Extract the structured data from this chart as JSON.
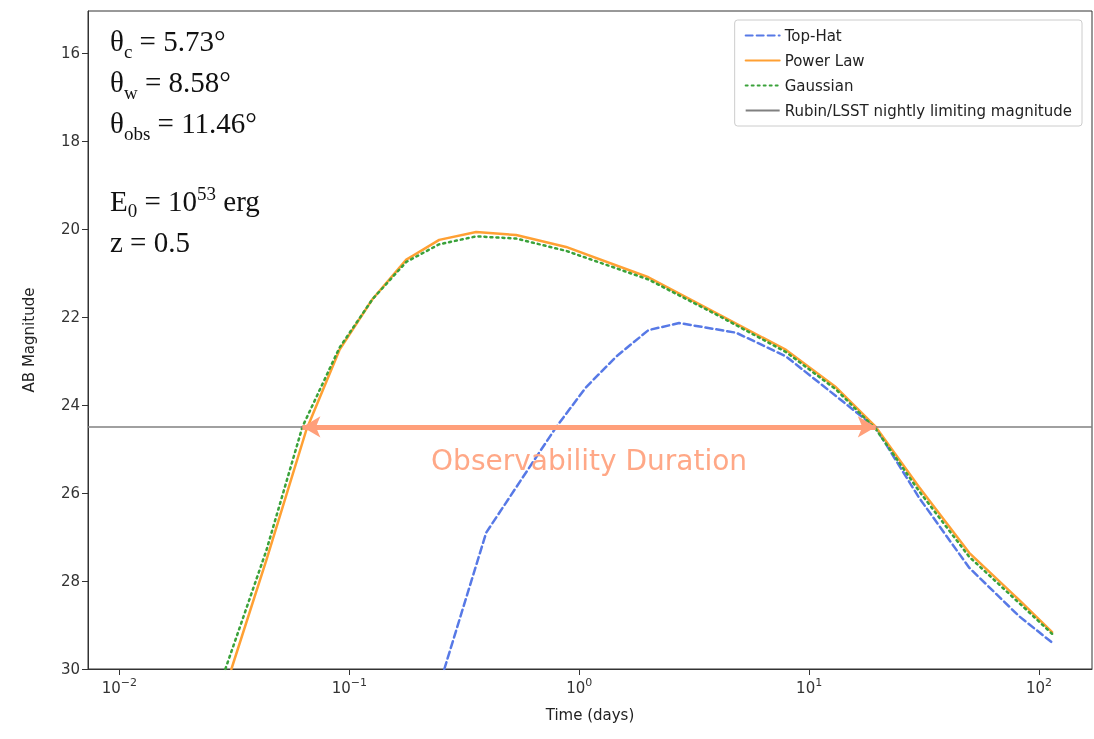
{
  "chart_data": {
    "type": "line",
    "xlabel": "Time (days)",
    "ylabel": "AB Magnitude",
    "log": "x",
    "marker": "none",
    "grid": false,
    "legend": "top right",
    "xlim": [
      0.0073,
      170
    ],
    "xticks": [
      {
        "value": 0.01,
        "label": "10$^{−2}$"
      },
      {
        "value": 0.1,
        "label": "10$^{−1}$"
      },
      {
        "value": 1,
        "label": "10$^{0}$"
      },
      {
        "value": 10,
        "label": "10$^{1}$"
      },
      {
        "value": 100,
        "label": "10$^{2}$"
      }
    ],
    "ylim": [
      30,
      15.05
    ],
    "yticks": [
      16,
      18,
      20,
      22,
      24,
      26,
      28,
      30
    ],
    "series": [
      {
        "name": "Top-Hat",
        "color": "#5779e6",
        "line_style": "dashed",
        "x": [
          0.259,
          0.394,
          0.625,
          0.795,
          1.07,
          1.45,
          2.0,
          2.72,
          4.82,
          7.94,
          13.1,
          19.5,
          30,
          49.7,
          81.9,
          114
        ],
        "values": [
          30,
          26.9,
          25.32,
          24.5,
          23.6,
          22.9,
          22.3,
          22.14,
          22.36,
          22.9,
          23.8,
          24.52,
          26.1,
          27.7,
          28.8,
          29.4
        ]
      },
      {
        "name": "Power Law",
        "color": "#ffa033",
        "line_style": "solid",
        "x": [
          0.0307,
          0.0436,
          0.065,
          0.0906,
          0.126,
          0.177,
          0.246,
          0.356,
          0.532,
          0.877,
          2.0,
          4.06,
          7.94,
          13.1,
          19.5,
          30,
          49.7,
          81.9,
          114
        ],
        "values": [
          30,
          27.52,
          24.57,
          22.75,
          21.6,
          20.7,
          20.25,
          20.07,
          20.14,
          20.41,
          21.1,
          21.95,
          22.75,
          23.6,
          24.5,
          25.86,
          27.36,
          28.43,
          29.16
        ]
      },
      {
        "name": "Gaussian",
        "color": "#3aa23a",
        "line_style": "dotted",
        "x": [
          0.0289,
          0.0436,
          0.0625,
          0.0906,
          0.126,
          0.177,
          0.246,
          0.356,
          0.532,
          0.877,
          2.0,
          4.06,
          7.94,
          13.1,
          19.5,
          30,
          49.7,
          81.9,
          114
        ],
        "values": [
          30,
          27.3,
          24.5,
          22.7,
          21.6,
          20.75,
          20.35,
          20.17,
          20.22,
          20.5,
          21.15,
          21.98,
          22.8,
          23.65,
          24.55,
          25.95,
          27.45,
          28.5,
          29.2
        ]
      }
    ],
    "ref_lines": [
      {
        "axis": "y",
        "value": 24.5,
        "label": "Rubin/LSST nightly limiting magnitude",
        "color": "#808080"
      }
    ],
    "annotations": [
      "θ$_{c}$ = 5.73°",
      "θ$_{w}$ = 8.58°",
      "θ$_{obs}$ = 11.46°",
      "E$_{0}$ = 10$^{53}$ erg",
      "z = 0.5",
      "Observability Duration"
    ]
  }
}
